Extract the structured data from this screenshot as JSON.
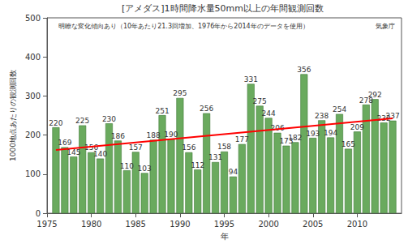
{
  "chart_data": {
    "type": "bar",
    "title": "[アメダス]1時間降水量50mm以上の年間観測回数",
    "annotations": [
      "明瞭な変化傾向あり（10年あたり21.3回増加、1976年から2014年のデータを使用）",
      "気象庁"
    ],
    "x_label": "年",
    "y_label": "1000地点あたりの観測回数",
    "series": [
      {
        "type": "bar",
        "color": "#6aaa5e",
        "x": [
          1976,
          1977,
          1978,
          1979,
          1980,
          1981,
          1982,
          1983,
          1984,
          1985,
          1986,
          1987,
          1988,
          1989,
          1990,
          1991,
          1992,
          1993,
          1994,
          1995,
          1996,
          1997,
          1998,
          1999,
          2000,
          2001,
          2002,
          2003,
          2004,
          2005,
          2006,
          2007,
          2008,
          2009,
          2010,
          2011,
          2012,
          2013,
          2014
        ],
        "values": [
          220,
          169,
          145,
          225,
          156,
          140,
          230,
          186,
          110,
          157,
          103,
          188,
          251,
          190,
          295,
          156,
          112,
          256,
          131,
          158,
          94,
          177,
          331,
          275,
          244,
          206,
          173,
          182,
          356,
          193,
          238,
          194,
          254,
          165,
          209,
          278,
          292,
          232,
          237
        ]
      },
      {
        "type": "line",
        "color": "#ff0000",
        "x": [
          1976,
          2014
        ],
        "values": [
          162,
          243
        ]
      }
    ],
    "xlim": [
      1975,
      2015
    ],
    "xticks": [
      1975,
      1980,
      1985,
      1990,
      1995,
      2000,
      2005,
      2010
    ],
    "ylim": [
      0,
      500
    ],
    "yticks": [
      0,
      100,
      200,
      300,
      400,
      500
    ],
    "data_labels": true,
    "grid": false
  }
}
